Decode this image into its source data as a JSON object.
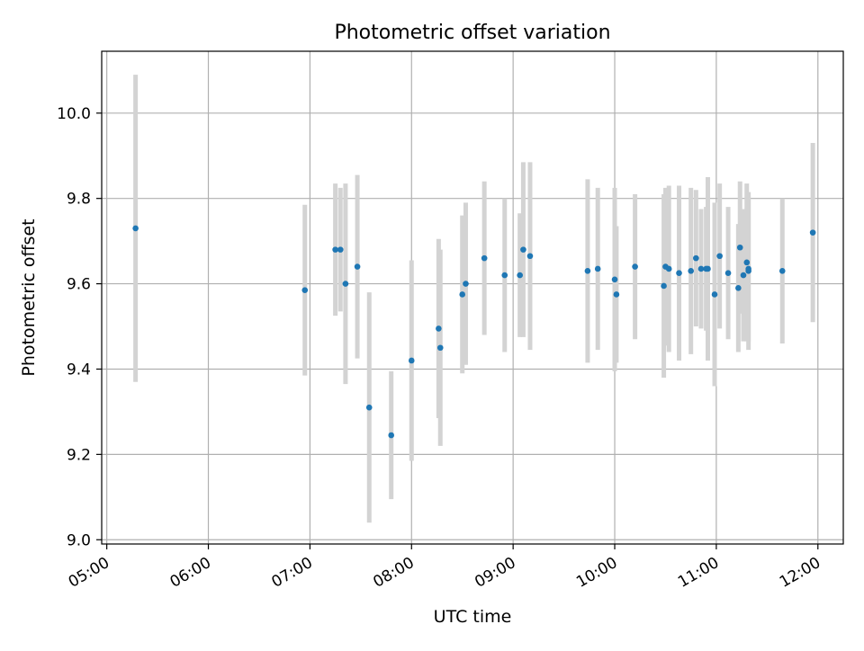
{
  "chart_data": {
    "type": "scatter",
    "title": "Photometric offset variation",
    "xlabel": "UTC time",
    "ylabel": "Photometric offset",
    "grid": true,
    "x_ticks": [
      "05:00",
      "06:00",
      "07:00",
      "08:00",
      "09:00",
      "10:00",
      "11:00",
      "12:00"
    ],
    "y_ticks": [
      "9.0",
      "9.2",
      "9.4",
      "9.6",
      "9.8",
      "10.0"
    ],
    "xlim": [
      "04:57",
      "12:15"
    ],
    "ylim": [
      8.99,
      10.145
    ],
    "colors": {
      "point": "#1f77b4",
      "errorbar": "#d3d3d3",
      "grid": "#b0b0b0"
    },
    "series": [
      {
        "x": [
          "05:17",
          "06:57",
          "07:15",
          "07:18",
          "07:21",
          "07:28",
          "07:35",
          "07:48",
          "08:00",
          "08:16",
          "08:17",
          "08:30",
          "08:32",
          "08:43",
          "08:55",
          "09:04",
          "09:06",
          "09:10",
          "09:44",
          "09:50",
          "10:00",
          "10:01",
          "10:12",
          "10:29",
          "10:30",
          "10:32",
          "10:38",
          "10:45",
          "10:48",
          "10:51",
          "10:54",
          "10:55",
          "10:59",
          "11:02",
          "11:07",
          "11:13",
          "11:14",
          "11:16",
          "11:18",
          "11:19",
          "11:19",
          "11:39",
          "11:57"
        ],
        "y": [
          9.73,
          9.585,
          9.68,
          9.68,
          9.6,
          9.64,
          9.31,
          9.245,
          9.42,
          9.495,
          9.45,
          9.575,
          9.6,
          9.66,
          9.62,
          9.62,
          9.68,
          9.665,
          9.63,
          9.635,
          9.61,
          9.575,
          9.64,
          9.595,
          9.64,
          9.635,
          9.625,
          9.63,
          9.66,
          9.635,
          9.635,
          9.635,
          9.575,
          9.665,
          9.625,
          9.59,
          9.685,
          9.62,
          9.65,
          9.63,
          9.635,
          9.63,
          9.72
        ],
        "yerr": [
          0.36,
          0.2,
          0.155,
          0.145,
          0.235,
          0.215,
          0.27,
          0.15,
          0.235,
          0.21,
          0.23,
          0.185,
          0.19,
          0.18,
          0.18,
          0.145,
          0.205,
          0.22,
          0.215,
          0.19,
          0.215,
          0.16,
          0.17,
          0.215,
          0.185,
          0.195,
          0.205,
          0.195,
          0.16,
          0.14,
          0.145,
          0.215,
          0.215,
          0.17,
          0.155,
          0.15,
          0.155,
          0.155,
          0.185,
          0.185,
          0.17,
          0.17,
          0.21
        ]
      }
    ]
  }
}
